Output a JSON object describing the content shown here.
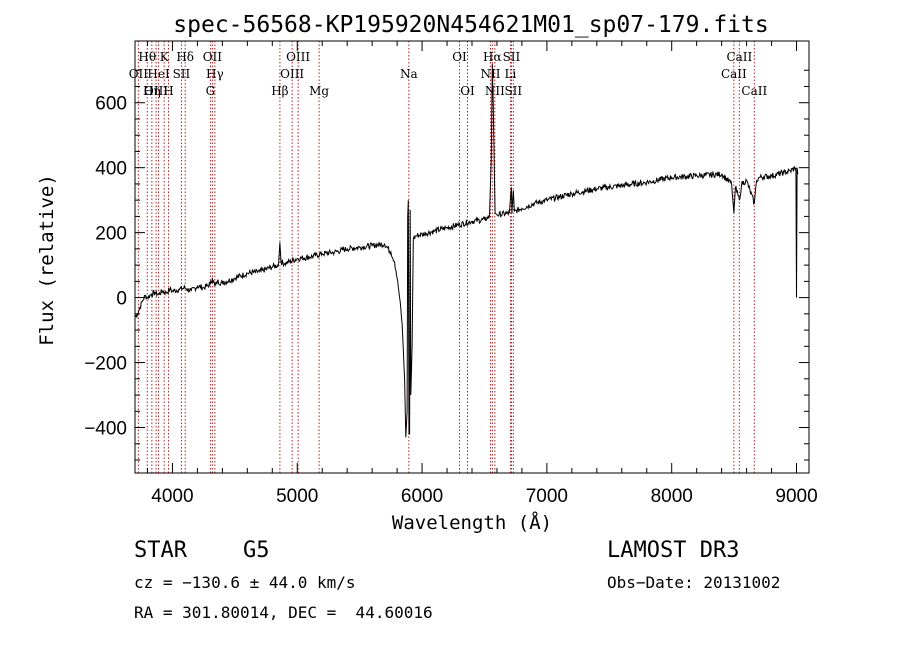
{
  "chart_data": {
    "type": "line",
    "title": "spec-56568-KP195920N454621M01_sp07-179.fits",
    "xlabel": "Wavelength (Å)",
    "ylabel": "Flux (relative)",
    "xlim": [
      3700,
      9100
    ],
    "ylim": [
      -540,
      790
    ],
    "xticks": [
      4000,
      5000,
      6000,
      7000,
      8000,
      9000
    ],
    "yticks": [
      -400,
      -200,
      0,
      200,
      400,
      600
    ],
    "series": [
      {
        "name": "spectrum",
        "x": [
          3700,
          3720,
          3740,
          3760,
          3780,
          3800,
          3830,
          3860,
          3890,
          3920,
          3950,
          3980,
          4000,
          4050,
          4100,
          4150,
          4200,
          4250,
          4300,
          4320,
          4340,
          4360,
          4400,
          4500,
          4600,
          4700,
          4800,
          4850,
          4861,
          4870,
          4900,
          5000,
          5100,
          5200,
          5300,
          5400,
          5500,
          5600,
          5700,
          5750,
          5780,
          5800,
          5820,
          5840,
          5860,
          5870,
          5880,
          5885,
          5890,
          5895,
          5900,
          5905,
          5910,
          5920,
          5930,
          5950,
          6000,
          6100,
          6200,
          6300,
          6400,
          6500,
          6540,
          6555,
          6563,
          6570,
          6585,
          6600,
          6700,
          6716,
          6720,
          6731,
          6740,
          6800,
          6900,
          7000,
          7200,
          7400,
          7600,
          7800,
          8000,
          8200,
          8400,
          8480,
          8498,
          8510,
          8542,
          8560,
          8600,
          8662,
          8680,
          8700,
          8800,
          8900,
          8950,
          8995,
          9000,
          9005,
          9010
        ],
        "y": [
          -60,
          -50,
          -30,
          -10,
          5,
          0,
          10,
          15,
          10,
          20,
          15,
          25,
          20,
          25,
          30,
          20,
          35,
          30,
          40,
          60,
          35,
          50,
          45,
          60,
          75,
          80,
          95,
          100,
          170,
          110,
          105,
          120,
          125,
          135,
          140,
          150,
          155,
          160,
          165,
          140,
          110,
          60,
          0,
          -80,
          -250,
          -430,
          -350,
          250,
          300,
          -420,
          -420,
          270,
          -300,
          -150,
          180,
          190,
          195,
          205,
          215,
          225,
          235,
          240,
          250,
          430,
          720,
          600,
          260,
          255,
          260,
          340,
          260,
          330,
          265,
          275,
          290,
          300,
          320,
          335,
          345,
          355,
          370,
          375,
          380,
          350,
          260,
          340,
          300,
          350,
          360,
          290,
          360,
          370,
          375,
          385,
          390,
          400,
          0,
          400,
          380
        ]
      }
    ],
    "lines": [
      {
        "label": "Hθ",
        "wave": 3798,
        "row": 1
      },
      {
        "label": "OII",
        "wave": 3727,
        "row": 2
      },
      {
        "label": "OIII",
        "wave": 3869,
        "row": 3
      },
      {
        "label": "K",
        "wave": 3934,
        "row": 1
      },
      {
        "label": "HeI",
        "wave": 3889,
        "row": 2
      },
      {
        "label": "Hη",
        "wave": 3835,
        "row": 3
      },
      {
        "label": "Hδ",
        "wave": 4102,
        "row": 1
      },
      {
        "label": "SII",
        "wave": 4072,
        "row": 2
      },
      {
        "label": "H",
        "wave": 3968,
        "row": 3
      },
      {
        "label": "OII",
        "wave": 4320,
        "row": 1
      },
      {
        "label": "Hγ",
        "wave": 4340,
        "row": 2
      },
      {
        "label": "G",
        "wave": 4304,
        "row": 3
      },
      {
        "label": "OIII",
        "wave": 5007,
        "row": 1
      },
      {
        "label": "OIII",
        "wave": 4959,
        "row": 2
      },
      {
        "label": "Hβ",
        "wave": 4861,
        "row": 3
      },
      {
        "label": "Mg",
        "wave": 5175,
        "row": 3
      },
      {
        "label": "Na",
        "wave": 5894,
        "row": 2
      },
      {
        "label": "OI",
        "wave": 6300,
        "row": 1
      },
      {
        "label": "OI",
        "wave": 6364,
        "row": 3
      },
      {
        "label": "Hα",
        "wave": 6563,
        "row": 1
      },
      {
        "label": "NII",
        "wave": 6548,
        "row": 2
      },
      {
        "label": "NII",
        "wave": 6583,
        "row": 3
      },
      {
        "label": "SII",
        "wave": 6716,
        "row": 1
      },
      {
        "label": "Li",
        "wave": 6708,
        "row": 2
      },
      {
        "label": "SII",
        "wave": 6731,
        "row": 3
      },
      {
        "label": "CaII",
        "wave": 8542,
        "row": 1
      },
      {
        "label": "CaII",
        "wave": 8498,
        "row": 2
      },
      {
        "label": "CaII",
        "wave": 8662,
        "row": 3
      }
    ]
  },
  "footer": {
    "object_class": "STAR",
    "subclass": "G5",
    "survey": "LAMOST DR3",
    "cz": "cz = −130.6 ± 44.0 km/s",
    "obs_date": "Obs−Date: 20131002",
    "radec": "RA = 301.80014, DEC =  44.60016"
  },
  "colors": {
    "line_marker": "#b22222",
    "spectrum": "#000000",
    "axes": "#000000"
  }
}
